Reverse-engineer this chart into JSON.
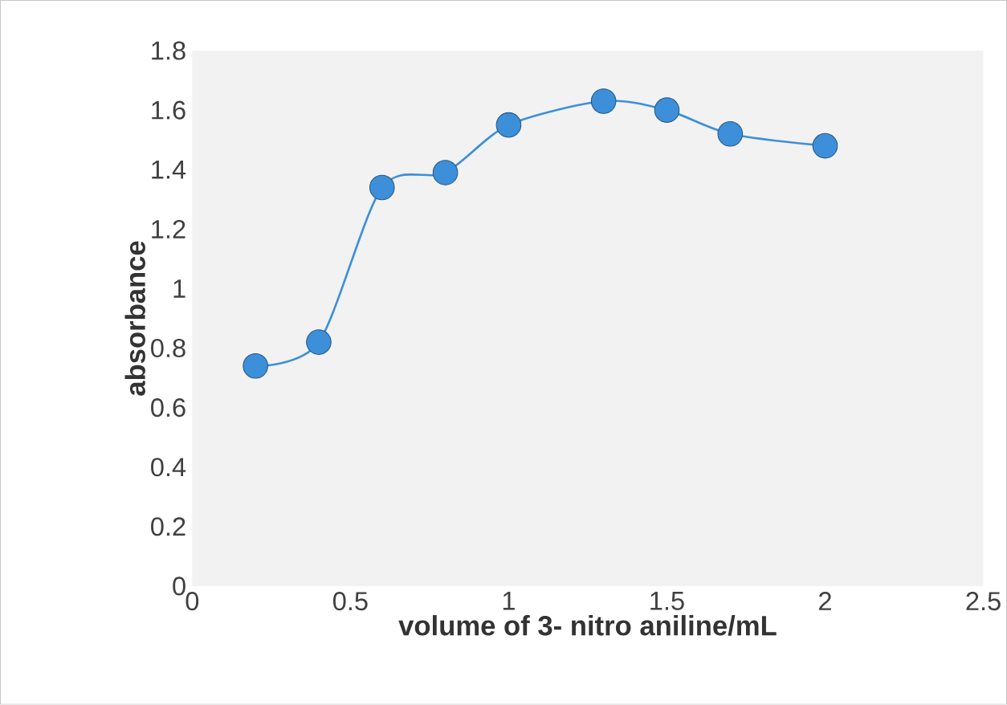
{
  "chart_data": {
    "type": "line",
    "xlabel": "volume of 3- nitro aniline/mL",
    "ylabel": "absorbance",
    "x": [
      0.2,
      0.4,
      0.6,
      0.8,
      1,
      1.3,
      1.5,
      1.7,
      2
    ],
    "series": [
      {
        "color": "#3d8fd9",
        "values": [
          0.74,
          0.82,
          1.34,
          1.39,
          1.55,
          1.63,
          1.6,
          1.52,
          1.48
        ]
      }
    ],
    "xlim": [
      0,
      2.5
    ],
    "xticks": [
      0,
      0.5,
      1,
      1.5,
      2,
      2.5
    ],
    "ylim": [
      0,
      1.8
    ],
    "yticks": [
      0,
      0.2,
      0.4,
      0.6,
      0.8,
      1,
      1.2,
      1.4,
      1.6,
      1.8
    ],
    "marker": "circle",
    "grid": false
  }
}
